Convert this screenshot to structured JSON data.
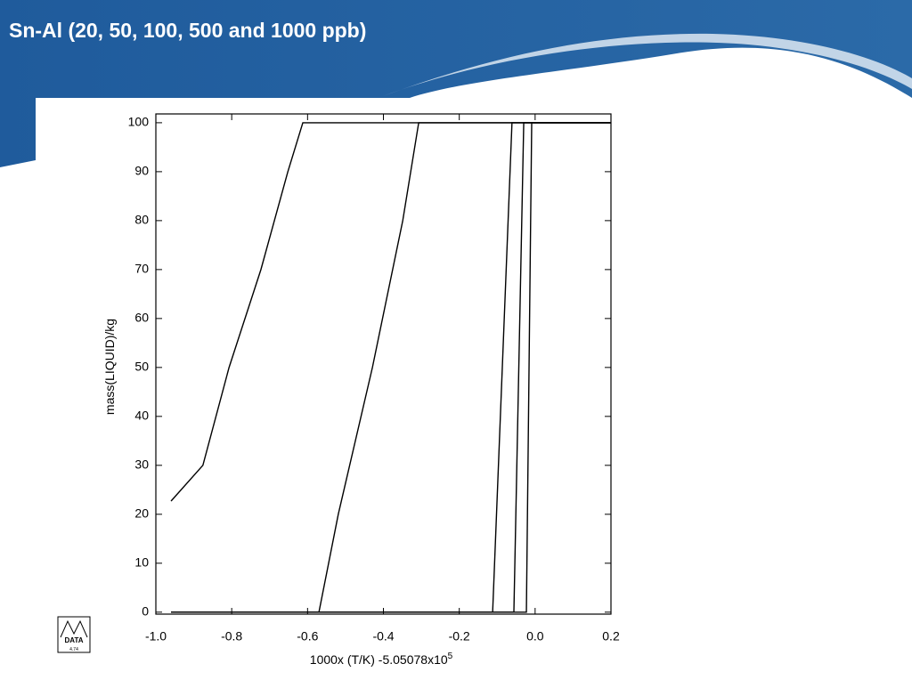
{
  "slide_title": "Sn-Al (20, 50, 100, 500 and 1000 ppb)",
  "logo": {
    "text": "DATA",
    "version": "4.74"
  },
  "chart_data": {
    "type": "line",
    "x_label": "1000x (T/K) -5.05078x10",
    "x_label_superscript": "5",
    "y_label": "mass(LIQUID)/kg",
    "xlim": [
      -1.0,
      0.2
    ],
    "ylim": [
      -0.4,
      101.8
    ],
    "xticks": [
      {
        "value": -1.0,
        "label": "-1.0"
      },
      -0.8,
      -0.6,
      -0.4,
      -0.2,
      {
        "value": 0,
        "label": "0.0"
      },
      0.2
    ],
    "yticks": [
      0,
      10,
      20,
      30,
      40,
      50,
      60,
      70,
      80,
      90,
      100
    ],
    "series": [
      {
        "color": "#000000",
        "x": [
          -0.96,
          -0.876,
          -0.807,
          -0.723,
          -0.652,
          -0.6125,
          0.2
        ],
        "values": [
          22.7,
          30,
          50,
          70,
          90,
          100,
          100
        ]
      },
      {
        "color": "#000000",
        "x": [
          -0.96,
          -0.57,
          -0.519,
          -0.429,
          -0.349,
          -0.307,
          0.2
        ],
        "values": [
          0,
          0,
          20,
          50,
          80,
          100,
          100
        ]
      },
      {
        "color": "#000000",
        "x": [
          -0.96,
          -0.112,
          -0.061,
          0.2
        ],
        "values": [
          0,
          0,
          100,
          100
        ]
      },
      {
        "color": "#000000",
        "x": [
          -0.96,
          -0.056,
          -0.03,
          0.2
        ],
        "values": [
          0,
          0,
          100,
          100
        ]
      },
      {
        "color": "#000000",
        "x": [
          -0.96,
          -0.023,
          -0.009,
          0.2
        ],
        "values": [
          0,
          0,
          100,
          100
        ]
      }
    ]
  }
}
